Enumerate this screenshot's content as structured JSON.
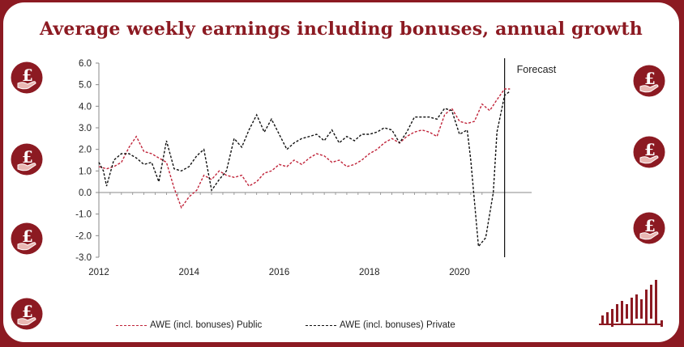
{
  "header": {
    "title": "Average weekly earnings including bonuses, annual growth"
  },
  "colors": {
    "frame": "#8c1a22",
    "public": "#c0243a",
    "private": "#111111",
    "badge": "#8c1a22"
  },
  "icons": {
    "badge": "pound-hand-icon",
    "logo": "bar-signal-icon"
  },
  "chart_data": {
    "type": "line",
    "title": "Average weekly earnings including bonuses, annual growth",
    "xlabel": "",
    "ylabel": "",
    "xlim": [
      2012,
      2021.6
    ],
    "ylim": [
      -3.0,
      6.0
    ],
    "x_ticks": [
      2012,
      2014,
      2016,
      2018,
      2020
    ],
    "y_ticks": [
      "-3.0",
      "-2.0",
      "-1.0",
      "0.0",
      "1.0",
      "2.0",
      "3.0",
      "4.0",
      "5.0",
      "6.0"
    ],
    "annotation": {
      "text": "Forecast",
      "x": 2021.0
    },
    "legend_position": "bottom",
    "grid": false,
    "series": [
      {
        "name": "AWE (incl. bonuses) Public",
        "style": "dashed",
        "points": [
          [
            2012.0,
            1.2
          ],
          [
            2012.17,
            1.1
          ],
          [
            2012.33,
            1.2
          ],
          [
            2012.5,
            1.4
          ],
          [
            2012.67,
            2.1
          ],
          [
            2012.83,
            2.6
          ],
          [
            2013.0,
            1.9
          ],
          [
            2013.17,
            1.8
          ],
          [
            2013.33,
            1.6
          ],
          [
            2013.5,
            1.4
          ],
          [
            2013.67,
            0.2
          ],
          [
            2013.83,
            -0.7
          ],
          [
            2014.0,
            -0.2
          ],
          [
            2014.17,
            0.1
          ],
          [
            2014.33,
            0.8
          ],
          [
            2014.5,
            0.6
          ],
          [
            2014.67,
            1.0
          ],
          [
            2014.83,
            0.8
          ],
          [
            2015.0,
            0.7
          ],
          [
            2015.17,
            0.8
          ],
          [
            2015.33,
            0.3
          ],
          [
            2015.5,
            0.5
          ],
          [
            2015.67,
            0.9
          ],
          [
            2015.83,
            1.0
          ],
          [
            2016.0,
            1.3
          ],
          [
            2016.17,
            1.2
          ],
          [
            2016.33,
            1.5
          ],
          [
            2016.5,
            1.3
          ],
          [
            2016.67,
            1.6
          ],
          [
            2016.83,
            1.8
          ],
          [
            2017.0,
            1.7
          ],
          [
            2017.17,
            1.4
          ],
          [
            2017.33,
            1.5
          ],
          [
            2017.5,
            1.2
          ],
          [
            2017.67,
            1.3
          ],
          [
            2017.83,
            1.5
          ],
          [
            2018.0,
            1.8
          ],
          [
            2018.17,
            2.0
          ],
          [
            2018.33,
            2.3
          ],
          [
            2018.5,
            2.5
          ],
          [
            2018.67,
            2.3
          ],
          [
            2018.83,
            2.6
          ],
          [
            2019.0,
            2.8
          ],
          [
            2019.17,
            2.9
          ],
          [
            2019.33,
            2.8
          ],
          [
            2019.5,
            2.6
          ],
          [
            2019.67,
            3.6
          ],
          [
            2019.83,
            3.9
          ],
          [
            2020.0,
            3.3
          ],
          [
            2020.17,
            3.2
          ],
          [
            2020.33,
            3.3
          ],
          [
            2020.5,
            4.1
          ],
          [
            2020.67,
            3.8
          ],
          [
            2020.83,
            4.3
          ],
          [
            2021.0,
            4.8
          ],
          [
            2021.12,
            4.8
          ]
        ]
      },
      {
        "name": "AWE (incl. bonuses) Private",
        "style": "dashed",
        "points": [
          [
            2012.0,
            1.4
          ],
          [
            2012.1,
            1.0
          ],
          [
            2012.17,
            0.3
          ],
          [
            2012.33,
            1.5
          ],
          [
            2012.5,
            1.8
          ],
          [
            2012.67,
            1.8
          ],
          [
            2012.83,
            1.6
          ],
          [
            2013.0,
            1.3
          ],
          [
            2013.17,
            1.4
          ],
          [
            2013.33,
            0.5
          ],
          [
            2013.5,
            2.4
          ],
          [
            2013.67,
            1.1
          ],
          [
            2013.83,
            1.0
          ],
          [
            2014.0,
            1.2
          ],
          [
            2014.17,
            1.7
          ],
          [
            2014.33,
            2.0
          ],
          [
            2014.5,
            0.1
          ],
          [
            2014.67,
            0.6
          ],
          [
            2014.83,
            1.0
          ],
          [
            2015.0,
            2.5
          ],
          [
            2015.17,
            2.1
          ],
          [
            2015.33,
            2.9
          ],
          [
            2015.5,
            3.6
          ],
          [
            2015.67,
            2.8
          ],
          [
            2015.83,
            3.4
          ],
          [
            2016.0,
            2.7
          ],
          [
            2016.17,
            2.0
          ],
          [
            2016.33,
            2.3
          ],
          [
            2016.5,
            2.5
          ],
          [
            2016.67,
            2.6
          ],
          [
            2016.83,
            2.7
          ],
          [
            2017.0,
            2.4
          ],
          [
            2017.17,
            2.9
          ],
          [
            2017.33,
            2.3
          ],
          [
            2017.5,
            2.6
          ],
          [
            2017.67,
            2.4
          ],
          [
            2017.83,
            2.7
          ],
          [
            2018.0,
            2.7
          ],
          [
            2018.17,
            2.8
          ],
          [
            2018.33,
            3.0
          ],
          [
            2018.5,
            2.9
          ],
          [
            2018.67,
            2.3
          ],
          [
            2018.83,
            2.8
          ],
          [
            2019.0,
            3.5
          ],
          [
            2019.17,
            3.5
          ],
          [
            2019.33,
            3.5
          ],
          [
            2019.5,
            3.4
          ],
          [
            2019.67,
            3.9
          ],
          [
            2019.83,
            3.8
          ],
          [
            2020.0,
            2.7
          ],
          [
            2020.17,
            2.9
          ],
          [
            2020.25,
            1.5
          ],
          [
            2020.42,
            -2.5
          ],
          [
            2020.58,
            -2.1
          ],
          [
            2020.75,
            0.0
          ],
          [
            2020.83,
            2.8
          ],
          [
            2021.0,
            4.5
          ],
          [
            2021.12,
            4.7
          ]
        ]
      }
    ]
  }
}
